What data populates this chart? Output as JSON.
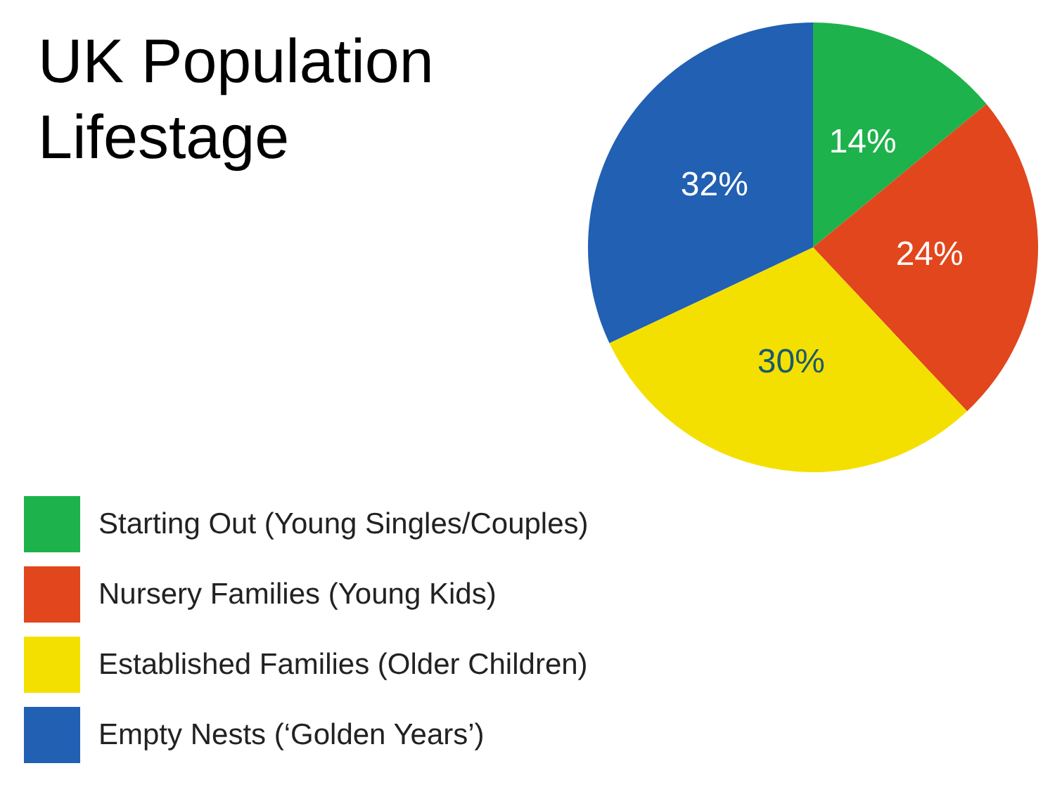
{
  "chart_data": {
    "type": "pie",
    "title": "UK Population Lifestage",
    "categories": [
      "Starting Out (Young Singles/Couples)",
      "Nursery Families (Young Kids)",
      "Established Families (Older Children)",
      "Empty Nests (‘Golden Years’)"
    ],
    "values": [
      14,
      24,
      30,
      32
    ],
    "value_labels": [
      "14%",
      "24%",
      "30%",
      "32%"
    ],
    "colors": [
      "#1db24b",
      "#e2461d",
      "#f4e000",
      "#2160b2"
    ],
    "legend": "bottom left"
  }
}
